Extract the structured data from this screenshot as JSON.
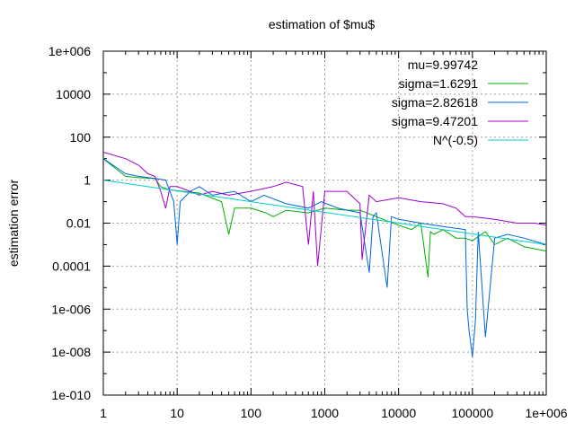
{
  "chart_data": {
    "type": "line",
    "title": "estimation of $mu$",
    "xlabel": "",
    "ylabel": "estimation error",
    "x_scale": "log",
    "y_scale": "log",
    "xlim": [
      1,
      1000000
    ],
    "ylim": [
      1e-10,
      1000000
    ],
    "x_ticks": [
      1,
      10,
      100,
      1000,
      10000,
      100000,
      1000000
    ],
    "x_tick_labels": [
      "1",
      "10",
      "100",
      "1000",
      "10000",
      "100000",
      "1e+006"
    ],
    "y_ticks": [
      1e-10,
      1e-08,
      1e-06,
      0.0001,
      0.01,
      1,
      100,
      10000,
      1000000
    ],
    "y_tick_labels": [
      "1e-010",
      "1e-008",
      "1e-006",
      "0.0001",
      "0.01",
      "1",
      "100",
      "10000",
      "1e+006"
    ],
    "grid": true,
    "legend_position": "top-right",
    "legend_header": "mu=9.99742",
    "series": [
      {
        "name": "sigma=1.6291",
        "color": "#00b000",
        "x": [
          1,
          2,
          3,
          5,
          6,
          8,
          12,
          20,
          40,
          50,
          60,
          100,
          160,
          200,
          300,
          600,
          1000,
          2000,
          3000,
          5000,
          10000,
          15000,
          20000,
          25000,
          27000,
          30000,
          40000,
          60000,
          80000,
          100000,
          150000,
          200000,
          300000,
          500000,
          1000000
        ],
        "y": [
          10,
          1.5,
          1.3,
          1.2,
          0.5,
          0.35,
          0.3,
          0.25,
          0.1,
          0.003,
          0.05,
          0.05,
          0.03,
          0.02,
          0.04,
          0.03,
          0.05,
          0.04,
          0.04,
          0.02,
          0.008,
          0.005,
          0.01,
          3e-05,
          0.004,
          0.003,
          0.005,
          0.002,
          0.002,
          0.0015,
          0.004,
          0.001,
          0.002,
          0.0008,
          0.0005
        ]
      },
      {
        "name": "sigma=2.82618",
        "color": "#0066dd",
        "x": [
          1,
          2,
          3,
          5,
          7,
          9,
          10,
          11,
          15,
          20,
          30,
          60,
          100,
          150,
          300,
          600,
          900,
          1500,
          3000,
          4000,
          4500,
          5000,
          7000,
          8000,
          10000,
          20000,
          40000,
          80000,
          85000,
          90000,
          100000,
          110000,
          120000,
          150000,
          200000,
          300000,
          500000,
          1000000
        ],
        "y": [
          10,
          2,
          1.5,
          1.2,
          1,
          0.1,
          0.001,
          0.1,
          0.3,
          0.5,
          0.2,
          0.3,
          0.1,
          0.2,
          0.08,
          0.05,
          0.1,
          0.05,
          0.03,
          5e-05,
          0.02,
          0.03,
          1e-05,
          0.02,
          0.015,
          0.01,
          0.007,
          0.005,
          1e-06,
          1e-07,
          6e-09,
          3e-07,
          0.004,
          5e-08,
          0.002,
          0.003,
          0.002,
          0.001
        ]
      },
      {
        "name": "sigma=9.47201",
        "color": "#a000d0",
        "x": [
          1,
          2,
          3,
          4,
          5,
          6,
          7,
          8,
          10,
          15,
          20,
          30,
          50,
          100,
          200,
          300,
          500,
          600,
          700,
          800,
          1000,
          2000,
          3000,
          3200,
          4000,
          5000,
          10000,
          20000,
          40000,
          60000,
          80000,
          100000,
          200000,
          400000,
          700000,
          1000000
        ],
        "y": [
          20,
          10,
          5,
          2,
          1.5,
          0.3,
          0.05,
          0.5,
          0.5,
          0.3,
          0.2,
          0.3,
          0.2,
          0.3,
          0.5,
          0.8,
          0.5,
          0.001,
          0.3,
          0.0001,
          0.3,
          0.3,
          0.08,
          0.0002,
          0.2,
          0.1,
          0.15,
          0.1,
          0.08,
          0.05,
          0.02,
          0.02,
          0.015,
          0.01,
          0.01,
          0.008
        ]
      },
      {
        "name": "N^(-0.5)",
        "color": "#00cccc",
        "x": [
          1,
          10,
          100,
          1000,
          10000,
          100000,
          1000000
        ],
        "y": [
          1,
          0.31623,
          0.1,
          0.031623,
          0.01,
          0.0031623,
          0.001
        ]
      }
    ]
  }
}
